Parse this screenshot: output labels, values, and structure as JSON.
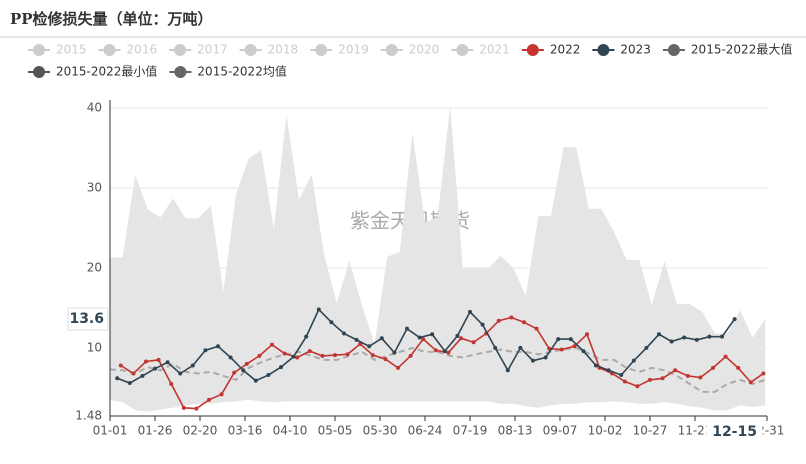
{
  "chart_data": {
    "type": "line",
    "title": "PP检修损失量（单位：万吨）",
    "watermark": "紫金天风期货",
    "ylim": [
      1.48,
      40
    ],
    "yticks": [
      1.48,
      10,
      20,
      30,
      40
    ],
    "xlim": [
      0,
      365
    ],
    "xticks": [
      {
        "value": 0,
        "label": "01-01"
      },
      {
        "value": 25,
        "label": "01-26"
      },
      {
        "value": 50,
        "label": "02-20"
      },
      {
        "value": 75,
        "label": "03-16"
      },
      {
        "value": 100,
        "label": "04-10"
      },
      {
        "value": 125,
        "label": "05-05"
      },
      {
        "value": 150,
        "label": "05-30"
      },
      {
        "value": 175,
        "label": "06-24"
      },
      {
        "value": 200,
        "label": "07-19"
      },
      {
        "value": 225,
        "label": "08-13"
      },
      {
        "value": 250,
        "label": "09-07"
      },
      {
        "value": 275,
        "label": "10-02"
      },
      {
        "value": 300,
        "label": "10-27"
      },
      {
        "value": 325,
        "label": "11-21"
      },
      {
        "value": 365,
        "label": "12-31"
      }
    ],
    "grid": true,
    "pointer": {
      "x": 347,
      "x_label": "12-15",
      "y": 13.6
    },
    "inactive_series": [
      "2015",
      "2016",
      "2017",
      "2018",
      "2019",
      "2020",
      "2021"
    ],
    "inactive_color": "#cccccc",
    "series": [
      {
        "name": "2022",
        "color": "#c23531",
        "style": "line",
        "x": [
          6,
          13,
          20,
          27,
          34,
          41,
          48,
          55,
          62,
          69,
          76,
          83,
          90,
          97,
          104,
          111,
          118,
          125,
          132,
          139,
          146,
          153,
          160,
          167,
          174,
          181,
          188,
          195,
          202,
          209,
          216,
          223,
          230,
          237,
          244,
          251,
          258,
          265,
          272,
          279,
          286,
          293,
          300,
          307,
          314,
          321,
          328,
          335,
          342,
          349,
          356,
          363
        ],
        "values": [
          7.8,
          6.8,
          8.3,
          8.5,
          5.5,
          2.5,
          2.4,
          3.5,
          4.2,
          6.9,
          8.0,
          9.0,
          10.4,
          9.3,
          8.8,
          9.6,
          9.0,
          9.1,
          9.2,
          10.5,
          9.1,
          8.6,
          7.5,
          9.0,
          11.1,
          9.7,
          9.4,
          11.2,
          10.7,
          11.8,
          13.4,
          13.8,
          13.2,
          12.4,
          9.9,
          9.8,
          10.2,
          11.7,
          7.5,
          6.8,
          5.8,
          5.2,
          6.0,
          6.2,
          7.2,
          6.5,
          6.3,
          7.5,
          8.9,
          7.5,
          5.7,
          6.8
        ]
      },
      {
        "name": "2023",
        "color": "#2f4554",
        "style": "line",
        "x": [
          4,
          11,
          18,
          25,
          32,
          39,
          46,
          53,
          60,
          67,
          74,
          81,
          88,
          95,
          102,
          109,
          116,
          123,
          130,
          137,
          144,
          151,
          158,
          165,
          172,
          179,
          186,
          193,
          200,
          207,
          214,
          221,
          228,
          235,
          242,
          249,
          256,
          263,
          270,
          277,
          284,
          291,
          298,
          305,
          312,
          319,
          326,
          333,
          340,
          347
        ],
        "values": [
          6.2,
          5.6,
          6.5,
          7.4,
          8.2,
          6.8,
          7.8,
          9.7,
          10.2,
          8.8,
          7.2,
          5.9,
          6.6,
          7.6,
          8.9,
          11.4,
          14.8,
          13.2,
          11.8,
          11.0,
          10.2,
          11.2,
          9.4,
          12.4,
          11.3,
          11.7,
          9.6,
          11.5,
          14.5,
          12.9,
          10.0,
          7.2,
          10.0,
          8.4,
          8.8,
          11.1,
          11.1,
          9.6,
          7.8,
          7.2,
          6.6,
          8.4,
          10.0,
          11.7,
          10.8,
          11.3,
          11.0,
          11.4,
          11.4,
          13.6
        ]
      },
      {
        "name": "2015-2022最大值",
        "color": "#666666",
        "fill": "#e5e5e5",
        "style": "area",
        "x": [
          0,
          7,
          14,
          21,
          28,
          35,
          42,
          49,
          56,
          63,
          70,
          77,
          84,
          91,
          98,
          105,
          112,
          119,
          126,
          133,
          140,
          147,
          154,
          161,
          168,
          175,
          182,
          189,
          196,
          203,
          210,
          217,
          224,
          231,
          238,
          245,
          252,
          259,
          266,
          273,
          280,
          287,
          294,
          301,
          308,
          315,
          322,
          329,
          336,
          343,
          350,
          357,
          364
        ],
        "values": [
          21.3,
          21.3,
          31.6,
          27.3,
          26.3,
          28.7,
          26.2,
          26.2,
          27.8,
          17,
          29.2,
          33.7,
          34.7,
          24.8,
          39.2,
          28.5,
          31.7,
          21.6,
          15.6,
          20.9,
          15.3,
          10.5,
          21.4,
          22,
          36.9,
          25.7,
          26.3,
          40.3,
          20,
          20,
          19.9,
          21.5,
          20,
          16.5,
          26.5,
          26.5,
          35.1,
          35.1,
          27.4,
          27.4,
          24.5,
          21,
          21,
          15.4,
          20.8,
          15.5,
          15.5,
          14.5,
          11.8,
          11.8,
          14.7,
          11.3,
          13.6
        ]
      },
      {
        "name": "2015-2022最小值",
        "color": "#555555",
        "fill": "#ffffff",
        "style": "area",
        "x": [
          0,
          7,
          14,
          21,
          28,
          35,
          42,
          49,
          56,
          63,
          70,
          77,
          84,
          91,
          98,
          105,
          112,
          119,
          126,
          133,
          140,
          147,
          154,
          161,
          168,
          175,
          182,
          189,
          196,
          203,
          210,
          217,
          224,
          231,
          238,
          245,
          252,
          259,
          266,
          273,
          280,
          287,
          294,
          301,
          308,
          315,
          322,
          329,
          336,
          343,
          350,
          357,
          364
        ],
        "values": [
          3.5,
          3.2,
          2.2,
          2.0,
          2.3,
          2.5,
          2.8,
          3.0,
          3.0,
          3.2,
          3.3,
          3.5,
          3.3,
          3.2,
          3.3,
          3.3,
          3.3,
          3.3,
          3.3,
          3.3,
          3.3,
          3.3,
          3.3,
          3.3,
          3.3,
          3.3,
          3.3,
          3.3,
          3.3,
          3.3,
          3.3,
          3.0,
          3.0,
          2.7,
          2.5,
          2.8,
          3.0,
          3.0,
          3.2,
          3.2,
          3.3,
          3.2,
          3.0,
          3.0,
          3.2,
          3.0,
          2.7,
          2.5,
          2.2,
          2.2,
          2.8,
          2.6,
          2.8
        ]
      },
      {
        "name": "2015-2022均值",
        "color": "#666666",
        "line_color": "#aaaaaa",
        "style": "dashed",
        "x": [
          0,
          7,
          14,
          21,
          28,
          35,
          42,
          49,
          56,
          63,
          70,
          77,
          84,
          91,
          98,
          105,
          112,
          119,
          126,
          133,
          140,
          147,
          154,
          161,
          168,
          175,
          182,
          189,
          196,
          203,
          210,
          217,
          224,
          231,
          238,
          245,
          252,
          259,
          266,
          273,
          280,
          287,
          294,
          301,
          308,
          315,
          322,
          329,
          336,
          343,
          350,
          357,
          364
        ],
        "values": [
          7.3,
          7.2,
          6.8,
          7.6,
          7.2,
          8.0,
          7.0,
          6.8,
          7.0,
          6.5,
          6.0,
          7.5,
          8.2,
          8.8,
          9.2,
          9.5,
          9.0,
          8.5,
          8.5,
          9.0,
          9.5,
          8.5,
          9.0,
          9.5,
          10.0,
          9.5,
          9.5,
          9.0,
          8.8,
          9.2,
          9.5,
          9.8,
          9.5,
          9.5,
          9.2,
          9.5,
          9.8,
          10.0,
          9.3,
          8.5,
          8.5,
          7.5,
          7.0,
          7.5,
          7.2,
          6.5,
          5.5,
          4.5,
          4.5,
          5.5,
          6.0,
          5.5,
          6.0
        ]
      }
    ]
  }
}
